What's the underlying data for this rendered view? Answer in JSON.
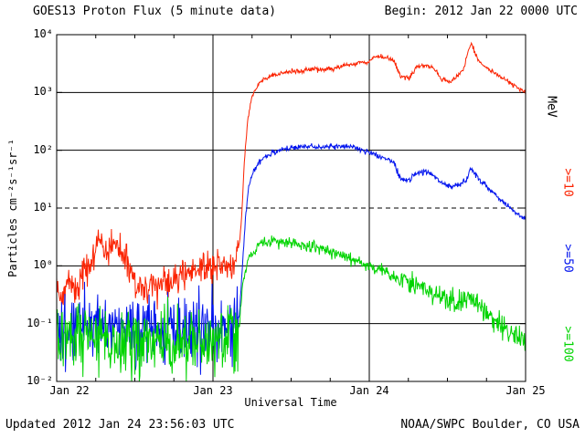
{
  "header": {
    "title": "GOES13 Proton Flux (5 minute data)",
    "begin_label": "Begin: 2012 Jan 22 0000 UTC"
  },
  "footer": {
    "updated": "Updated 2012 Jan 24 23:56:03 UTC",
    "source": "NOAA/SWPC Boulder, CO USA"
  },
  "chart_data": {
    "type": "line",
    "title": "GOES13 Proton Flux (5 minute data)",
    "xlabel": "Universal Time",
    "ylabel": "Particles cm⁻²s⁻¹sr⁻¹",
    "right_axis_label": "MeV",
    "x_ticks": [
      "Jan 22",
      "Jan 23",
      "Jan 24",
      "Jan 25"
    ],
    "y_ticks": [
      "10⁴",
      "10³",
      "10²",
      "10¹",
      "10⁰",
      "10⁻¹",
      "10⁻²"
    ],
    "x_range_days": [
      0,
      3
    ],
    "ylog_range": [
      -2,
      4
    ],
    "hlines_solid_log": [
      -1,
      0,
      2,
      3
    ],
    "hlines_dashed_log": [
      1
    ],
    "vlines_days": [
      1,
      2
    ],
    "grid": "partial",
    "legend_position": "right-rotated",
    "series": [
      {
        "name": ">=10",
        "color": "#fb2200",
        "units": "MeV",
        "noise": [
          [
            1.16,
            0.14
          ],
          [
            3.01,
            0.02
          ]
        ],
        "keypoints": [
          [
            0,
            0.45
          ],
          [
            0.04,
            0.3
          ],
          [
            0.08,
            0.55
          ],
          [
            0.12,
            0.4
          ],
          [
            0.16,
            0.6
          ],
          [
            0.2,
            1.0
          ],
          [
            0.24,
            1.6
          ],
          [
            0.28,
            2.4
          ],
          [
            0.32,
            1.7
          ],
          [
            0.36,
            2.6
          ],
          [
            0.4,
            2.2
          ],
          [
            0.44,
            1.1
          ],
          [
            0.48,
            0.7
          ],
          [
            0.52,
            0.4
          ],
          [
            0.56,
            0.35
          ],
          [
            0.6,
            0.5
          ],
          [
            0.64,
            0.42
          ],
          [
            0.68,
            0.6
          ],
          [
            0.72,
            0.45
          ],
          [
            0.76,
            0.55
          ],
          [
            0.8,
            0.75
          ],
          [
            0.84,
            0.6
          ],
          [
            0.88,
            0.95
          ],
          [
            0.92,
            0.75
          ],
          [
            0.96,
            0.9
          ],
          [
            1.0,
            1.0
          ],
          [
            1.04,
            1.3
          ],
          [
            1.08,
            0.85
          ],
          [
            1.12,
            1.1
          ],
          [
            1.15,
            1.6
          ],
          [
            1.17,
            2.5
          ],
          [
            1.185,
            8
          ],
          [
            1.2,
            60
          ],
          [
            1.22,
            300
          ],
          [
            1.25,
            900
          ],
          [
            1.3,
            1500
          ],
          [
            1.36,
            1900
          ],
          [
            1.42,
            2100
          ],
          [
            1.5,
            2300
          ],
          [
            1.58,
            2400
          ],
          [
            1.64,
            2600
          ],
          [
            1.7,
            2450
          ],
          [
            1.76,
            2600
          ],
          [
            1.82,
            2800
          ],
          [
            1.88,
            3000
          ],
          [
            1.94,
            3300
          ],
          [
            2.0,
            3400
          ],
          [
            2.04,
            4300
          ],
          [
            2.08,
            4100
          ],
          [
            2.12,
            3900
          ],
          [
            2.16,
            3500
          ],
          [
            2.2,
            1900
          ],
          [
            2.26,
            1800
          ],
          [
            2.3,
            2700
          ],
          [
            2.36,
            3000
          ],
          [
            2.42,
            2500
          ],
          [
            2.46,
            1700
          ],
          [
            2.52,
            1500
          ],
          [
            2.56,
            1900
          ],
          [
            2.6,
            2400
          ],
          [
            2.63,
            5000
          ],
          [
            2.655,
            7200
          ],
          [
            2.68,
            4500
          ],
          [
            2.71,
            3200
          ],
          [
            2.76,
            2600
          ],
          [
            2.82,
            2000
          ],
          [
            2.88,
            1600
          ],
          [
            2.94,
            1250
          ],
          [
            3.0,
            1000
          ]
        ]
      },
      {
        "name": ">=50",
        "color": "#0013ee",
        "units": "MeV",
        "noise": [
          [
            1.16,
            0.3
          ],
          [
            3.01,
            0.025
          ]
        ],
        "keypoints": [
          [
            0,
            0.09
          ],
          [
            0.1,
            0.08
          ],
          [
            0.2,
            0.1
          ],
          [
            0.3,
            0.09
          ],
          [
            0.4,
            0.08
          ],
          [
            0.5,
            0.07
          ],
          [
            0.6,
            0.08
          ],
          [
            0.7,
            0.075
          ],
          [
            0.8,
            0.08
          ],
          [
            0.9,
            0.085
          ],
          [
            1.0,
            0.09
          ],
          [
            1.1,
            0.08
          ],
          [
            1.15,
            0.1
          ],
          [
            1.17,
            0.15
          ],
          [
            1.19,
            1.2
          ],
          [
            1.21,
            8
          ],
          [
            1.23,
            25
          ],
          [
            1.26,
            45
          ],
          [
            1.3,
            65
          ],
          [
            1.36,
            85
          ],
          [
            1.42,
            100
          ],
          [
            1.5,
            110
          ],
          [
            1.6,
            118
          ],
          [
            1.7,
            112
          ],
          [
            1.8,
            118
          ],
          [
            1.9,
            112
          ],
          [
            1.96,
            100
          ],
          [
            2.0,
            92
          ],
          [
            2.06,
            80
          ],
          [
            2.12,
            68
          ],
          [
            2.16,
            60
          ],
          [
            2.2,
            32
          ],
          [
            2.26,
            30
          ],
          [
            2.3,
            40
          ],
          [
            2.36,
            43
          ],
          [
            2.42,
            36
          ],
          [
            2.46,
            27
          ],
          [
            2.52,
            23
          ],
          [
            2.58,
            26
          ],
          [
            2.62,
            30
          ],
          [
            2.65,
            48
          ],
          [
            2.68,
            38
          ],
          [
            2.72,
            28
          ],
          [
            2.78,
            20
          ],
          [
            2.84,
            14
          ],
          [
            2.9,
            10
          ],
          [
            2.95,
            8
          ],
          [
            3.0,
            6.5
          ]
        ]
      },
      {
        "name": ">=100",
        "color": "#00d400",
        "units": "MeV",
        "noise": [
          [
            1.16,
            0.3
          ],
          [
            2.2,
            0.05
          ],
          [
            3.01,
            0.1
          ]
        ],
        "keypoints": [
          [
            0,
            0.05
          ],
          [
            0.15,
            0.055
          ],
          [
            0.3,
            0.05
          ],
          [
            0.45,
            0.045
          ],
          [
            0.6,
            0.05
          ],
          [
            0.75,
            0.048
          ],
          [
            0.9,
            0.052
          ],
          [
            1.05,
            0.05
          ],
          [
            1.15,
            0.06
          ],
          [
            1.17,
            0.1
          ],
          [
            1.19,
            0.5
          ],
          [
            1.22,
            1.2
          ],
          [
            1.26,
            1.9
          ],
          [
            1.3,
            2.4
          ],
          [
            1.35,
            2.7
          ],
          [
            1.4,
            2.6
          ],
          [
            1.48,
            2.45
          ],
          [
            1.56,
            2.3
          ],
          [
            1.64,
            2.1
          ],
          [
            1.72,
            1.85
          ],
          [
            1.8,
            1.6
          ],
          [
            1.88,
            1.35
          ],
          [
            1.94,
            1.1
          ],
          [
            2.0,
            0.95
          ],
          [
            2.06,
            0.85
          ],
          [
            2.12,
            0.78
          ],
          [
            2.18,
            0.6
          ],
          [
            2.22,
            0.5
          ],
          [
            2.3,
            0.46
          ],
          [
            2.4,
            0.36
          ],
          [
            2.5,
            0.26
          ],
          [
            2.56,
            0.22
          ],
          [
            2.62,
            0.26
          ],
          [
            2.66,
            0.3
          ],
          [
            2.7,
            0.22
          ],
          [
            2.76,
            0.15
          ],
          [
            2.82,
            0.11
          ],
          [
            2.88,
            0.08
          ],
          [
            2.94,
            0.06
          ],
          [
            3.0,
            0.05
          ]
        ]
      }
    ]
  }
}
